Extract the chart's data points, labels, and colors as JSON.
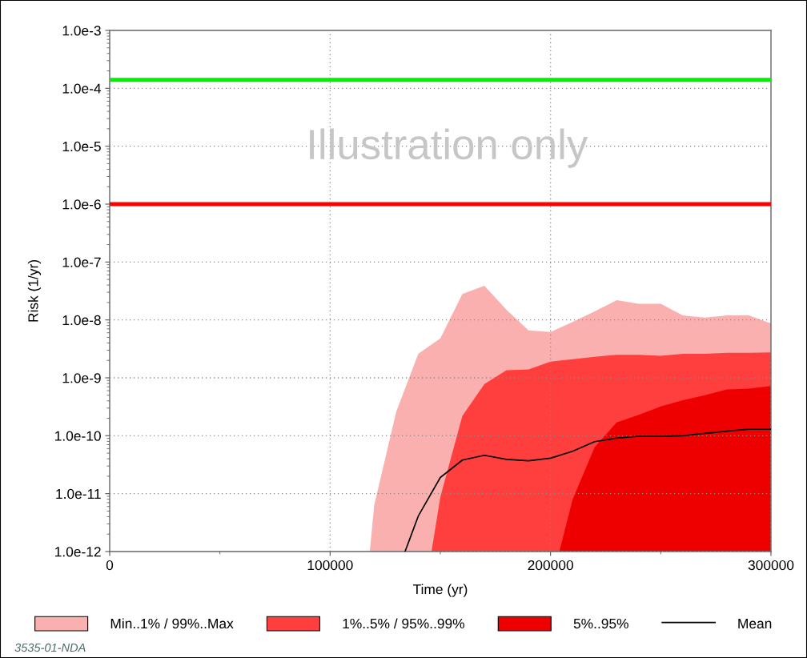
{
  "chart_data": {
    "type": "area",
    "xlabel": "Time (yr)",
    "ylabel": "Risk (1/yr)",
    "log": "y",
    "xlim": [
      0,
      300000
    ],
    "ylim": [
      1e-12,
      0.001
    ],
    "xticks": [
      0,
      {
        "value": 50000,
        "label": null
      },
      100000,
      {
        "value": 150000,
        "label": null
      },
      200000,
      {
        "value": 250000,
        "label": null
      },
      300000
    ],
    "yticks": [
      {
        "value": 1e-12,
        "label": "1.0e-12"
      },
      {
        "value": 1e-11,
        "label": "1.0e-11"
      },
      {
        "value": 1e-10,
        "label": "1.0e-10"
      },
      {
        "value": 1e-09,
        "label": "1.0e-9"
      },
      {
        "value": 1e-08,
        "label": "1.0e-8"
      },
      {
        "value": 1e-07,
        "label": "1.0e-7"
      },
      {
        "value": 1e-06,
        "label": "1.0e-6"
      },
      {
        "value": 1e-05,
        "label": "1.0e-5"
      },
      {
        "value": 0.0001,
        "label": "1.0e-4"
      },
      {
        "value": 0.001,
        "label": "1.0e-3"
      }
    ],
    "grid": true,
    "legend": "bottom",
    "series": [
      {
        "name": "Min..1% / 99%..Max",
        "color": "#fbb0b0",
        "x": [
          118000,
          120000,
          130000,
          140000,
          150000,
          160000,
          170000,
          180000,
          190000,
          200000,
          210000,
          220000,
          230000,
          240000,
          250000,
          260000,
          270000,
          280000,
          290000,
          300000
        ],
        "values": [
          1e-12,
          6.3e-12,
          2.6e-10,
          2.6e-09,
          4.8e-09,
          2.8e-08,
          3.9e-08,
          1.5e-08,
          6.6e-09,
          6.2e-09,
          9.2e-09,
          1.4e-08,
          2.2e-08,
          1.9e-08,
          1.9e-08,
          1.2e-08,
          1.1e-08,
          1.2e-08,
          1.2e-08,
          8.7e-09
        ]
      },
      {
        "name": "1%..5% / 95%..99%",
        "color": "#ff3e3e",
        "x": [
          146000,
          150000,
          160000,
          170000,
          180000,
          190000,
          200000,
          210000,
          220000,
          230000,
          240000,
          250000,
          260000,
          270000,
          280000,
          290000,
          300000
        ],
        "values": [
          1e-12,
          8.7e-12,
          2.2e-10,
          7.8e-10,
          1.35e-09,
          1.4e-09,
          1.9e-09,
          2.1e-09,
          2.3e-09,
          2.5e-09,
          2.5e-09,
          2.4e-09,
          2.6e-09,
          2.6e-09,
          2.7e-09,
          2.7e-09,
          2.75e-09
        ]
      },
      {
        "name": "5%..95%",
        "color": "#ee0000",
        "x": [
          204000,
          210000,
          220000,
          230000,
          240000,
          250000,
          260000,
          270000,
          280000,
          290000,
          300000
        ],
        "values": [
          1e-12,
          7.9e-12,
          6.3e-11,
          1.7e-10,
          2.3e-10,
          3.2e-10,
          4.1e-10,
          5e-10,
          6.3e-10,
          6.5e-10,
          7.2e-10
        ]
      },
      {
        "name": "Mean",
        "type": "line",
        "color": "#000000",
        "x": [
          134000,
          140000,
          150000,
          160000,
          170000,
          180000,
          190000,
          200000,
          210000,
          220000,
          230000,
          240000,
          250000,
          260000,
          270000,
          280000,
          290000,
          300000
        ],
        "values": [
          1e-12,
          4.1e-12,
          1.9e-11,
          3.8e-11,
          4.6e-11,
          3.9e-11,
          3.7e-11,
          4.1e-11,
          5.4e-11,
          7.9e-11,
          9.1e-11,
          9.8e-11,
          9.8e-11,
          1e-10,
          1.1e-10,
          1.2e-10,
          1.3e-10,
          1.3e-10
        ]
      }
    ],
    "ref_lines": [
      {
        "axis": "y",
        "value": 0.00014,
        "color": "#00ee00"
      },
      {
        "axis": "y",
        "value": 1e-06,
        "color": "#ff0000"
      }
    ],
    "annotations": [
      "Illustration only",
      "3535-01-NDA"
    ]
  }
}
